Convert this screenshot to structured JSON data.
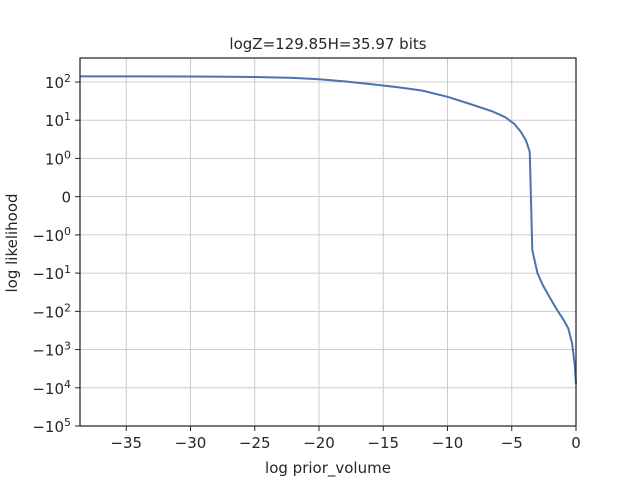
{
  "chart_data": {
    "type": "line",
    "title": "logZ=129.85H=35.97 bits",
    "xlabel": "log prior_volume",
    "ylabel": "log likelihood",
    "xlim": [
      -38.6,
      0
    ],
    "yscale": "symlog",
    "grid": true,
    "x_ticks": [
      {
        "value": -35,
        "label": "−35"
      },
      {
        "value": -30,
        "label": "−30"
      },
      {
        "value": -25,
        "label": "−25"
      },
      {
        "value": -20,
        "label": "−20"
      },
      {
        "value": -15,
        "label": "−15"
      },
      {
        "value": -10,
        "label": "−10"
      },
      {
        "value": -5,
        "label": "−5"
      },
      {
        "value": 0,
        "label": "0"
      }
    ],
    "y_ticks": [
      {
        "value": 100,
        "base": "10",
        "exp": "2",
        "sign": ""
      },
      {
        "value": 10,
        "base": "10",
        "exp": "1",
        "sign": ""
      },
      {
        "value": 1,
        "base": "10",
        "exp": "0",
        "sign": ""
      },
      {
        "value": 0,
        "base": "0",
        "exp": "",
        "sign": ""
      },
      {
        "value": -1,
        "base": "10",
        "exp": "0",
        "sign": "−"
      },
      {
        "value": -10,
        "base": "10",
        "exp": "1",
        "sign": "−"
      },
      {
        "value": -100,
        "base": "10",
        "exp": "2",
        "sign": "−"
      },
      {
        "value": -1000,
        "base": "10",
        "exp": "3",
        "sign": "−"
      },
      {
        "value": -10000,
        "base": "10",
        "exp": "4",
        "sign": "−"
      },
      {
        "value": -100000,
        "base": "10",
        "exp": "5",
        "sign": "−"
      }
    ],
    "series": [
      {
        "color": "#4c72b0",
        "x": [
          -38.6,
          -35,
          -30,
          -27,
          -25,
          -22,
          -20,
          -18,
          -16,
          -14,
          -12,
          -10,
          -8,
          -6.5,
          -5.5,
          -4.8,
          -4.3,
          -3.9,
          -3.6,
          -3.4,
          -3.2,
          -3.0,
          -2.6,
          -2.2,
          -1.8,
          -1.4,
          -1.0,
          -0.6,
          -0.3,
          -0.1,
          0
        ],
        "y": [
          140,
          140,
          139,
          137,
          135,
          128,
          118,
          104,
          88,
          74,
          60,
          41,
          25,
          17,
          12,
          8,
          5,
          3,
          1.5,
          -2.5,
          -5,
          -10,
          -20,
          -35,
          -60,
          -100,
          -160,
          -280,
          -700,
          -2500,
          -8000
        ]
      }
    ]
  }
}
